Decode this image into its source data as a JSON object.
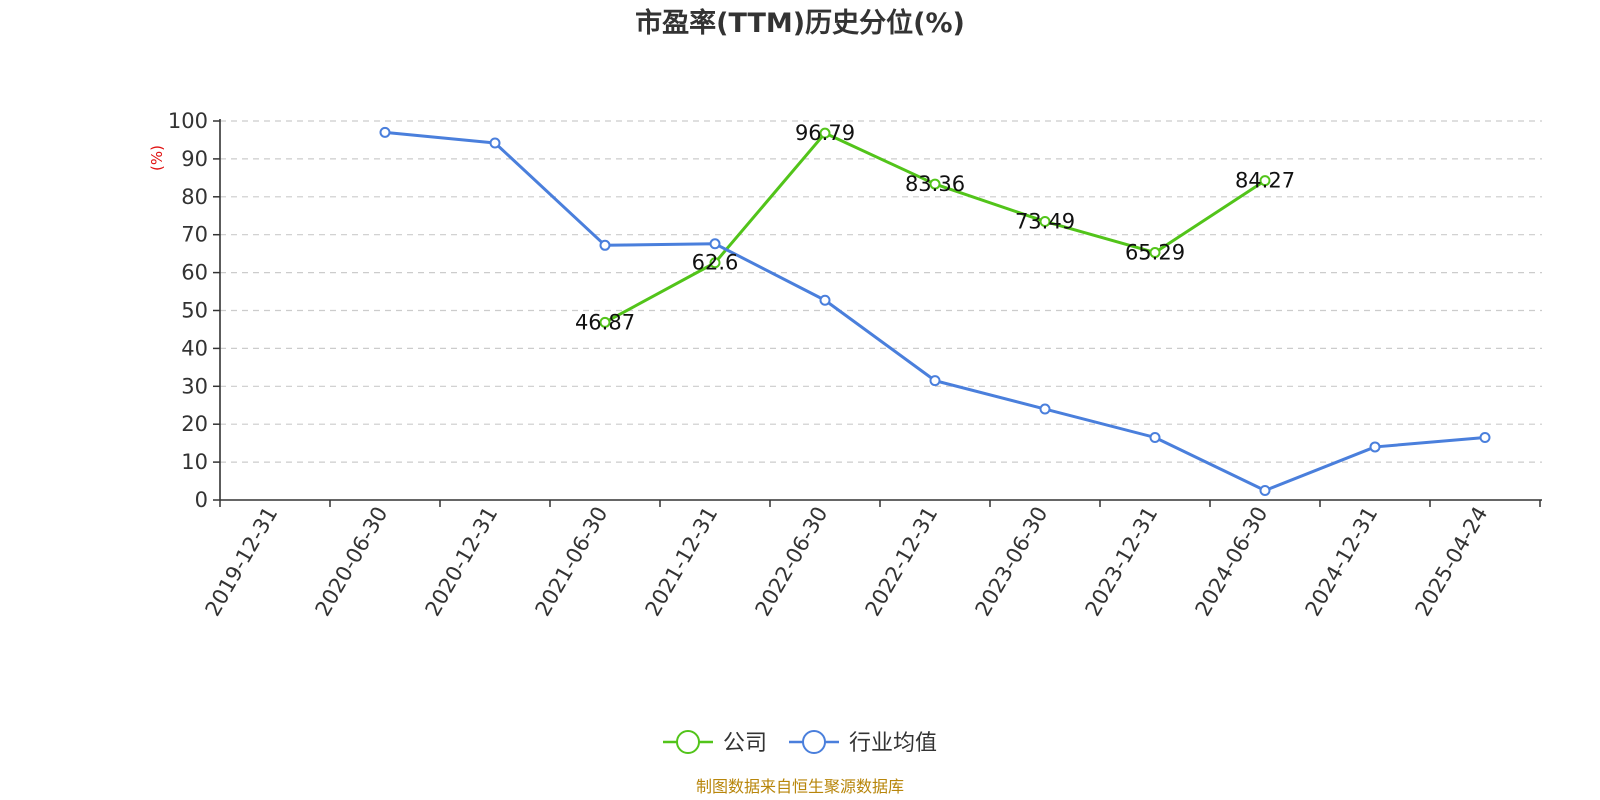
{
  "chart_data": {
    "type": "line",
    "title": "市盈率(TTM)历史分位(%)",
    "ylabel": "(%)",
    "ylim": [
      0,
      100
    ],
    "yticks": [
      0,
      10,
      20,
      30,
      40,
      50,
      60,
      70,
      80,
      90,
      100
    ],
    "grid": true,
    "legend_position": "bottom-center",
    "categories": [
      "2019-12-31",
      "2020-06-30",
      "2020-12-31",
      "2021-06-30",
      "2021-12-31",
      "2022-06-30",
      "2022-12-31",
      "2023-06-30",
      "2023-12-31",
      "2024-06-30",
      "2024-12-31",
      "2025-04-24"
    ],
    "series": [
      {
        "name": "公司",
        "color": "#52c41a",
        "show_labels": true,
        "values": [
          null,
          null,
          null,
          46.87,
          62.6,
          96.79,
          83.36,
          73.49,
          65.29,
          84.27,
          null,
          null
        ]
      },
      {
        "name": "行业均值",
        "color": "#4a7fdc",
        "show_labels": false,
        "values": [
          null,
          97,
          94.2,
          67.2,
          67.6,
          52.7,
          31.5,
          24,
          16.5,
          2.5,
          14,
          16.5
        ]
      }
    ],
    "source": "制图数据来自恒生聚源数据库"
  }
}
